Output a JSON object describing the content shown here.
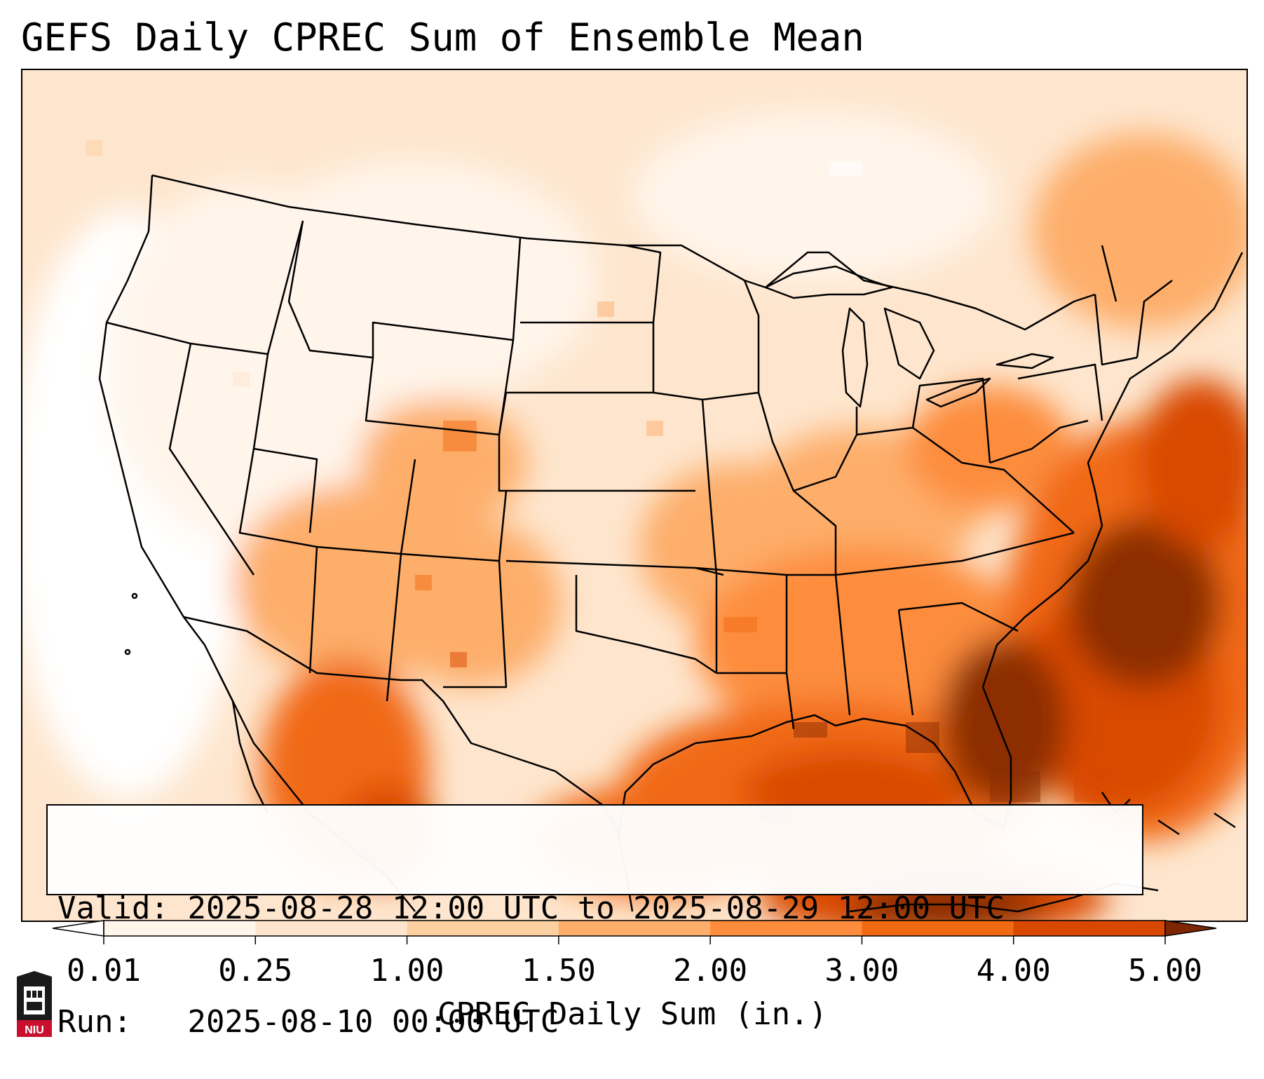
{
  "title": "GEFS Daily CPREC Sum of Ensemble Mean",
  "info": {
    "valid_label": "Valid:",
    "valid_value": "2025-08-28 12:00 UTC to 2025-08-29 12:00 UTC",
    "run_label": "Run:",
    "run_value": "2025-08-10 00:00 UTC"
  },
  "colorbar": {
    "label": "CPREC Daily Sum (in.)",
    "ticks": [
      "0.01",
      "0.25",
      "1.00",
      "1.50",
      "2.00",
      "3.00",
      "4.00",
      "5.00"
    ],
    "colors": [
      "#fff5eb",
      "#fee6ce",
      "#fdd0a2",
      "#fdae6b",
      "#fd8d3c",
      "#f16913",
      "#d94801",
      "#8c2d04"
    ],
    "under_color": "#ffffff",
    "over_color": "#7f2704"
  },
  "logo": {
    "text": "NIU",
    "colors": {
      "red": "#c8102e",
      "black": "#1a1a1a"
    }
  },
  "map": {
    "projection": "Lambert Conformal (CONUS)",
    "field": "CPREC daily sum, inches",
    "regions": [
      {
        "name": "Pacific Northwest",
        "level_in": "0.01-0.25"
      },
      {
        "name": "California / Great Basin",
        "level_in": "<0.01-0.25"
      },
      {
        "name": "Northern Rockies / High Plains",
        "level_in": "0.01-0.25"
      },
      {
        "name": "Four Corners / Arizona / New Mexico",
        "level_in": "0.25-2.00"
      },
      {
        "name": "Texas",
        "level_in": "0.01-1.00"
      },
      {
        "name": "Mid-Mississippi Valley / Ohio Valley",
        "level_in": "0.25-2.00"
      },
      {
        "name": "Southeast / Gulf Coast",
        "level_in": "1.00-4.00"
      },
      {
        "name": "Gulf of Mexico / Florida",
        "level_in": "2.00-5.00"
      },
      {
        "name": "Western Atlantic offshore",
        "level_in": "3.00-5.00+"
      },
      {
        "name": "New England / Canada east",
        "level_in": "0.25-2.00"
      },
      {
        "name": "Western Mexico / Sierra Madre",
        "level_in": "1.00-4.00"
      }
    ]
  }
}
